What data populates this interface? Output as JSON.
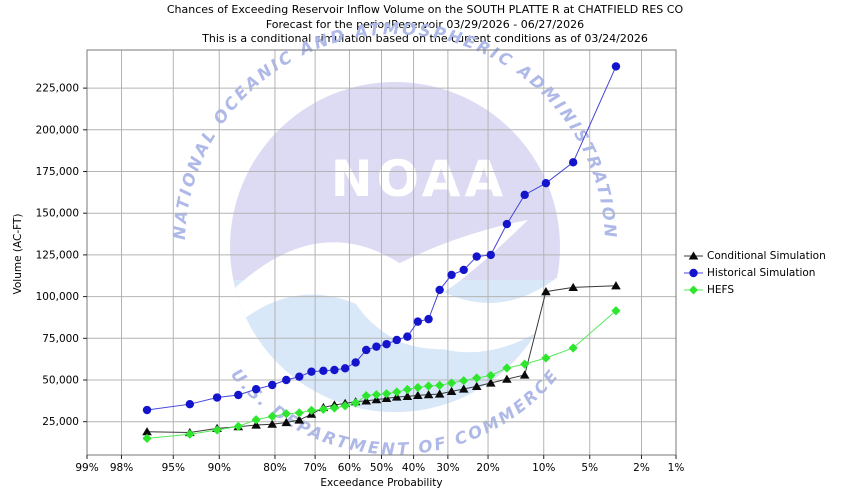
{
  "title": {
    "line1": "Chances of Exceeding Reservoir Inflow Volume on the SOUTH PLATTE R at CHATFIELD RES CO",
    "line2": "Forecast for the periodReservoir 03/29/2026 - 06/27/2026",
    "line3": "This is a conditional simulation based on the current conditions as of 03/24/2026"
  },
  "watermark": {
    "arc_text_top": "NATIONAL OCEANIC AND ATMOSPHERIC ADMINISTRATION",
    "arc_text_bottom": "U.S. DEPARTMENT OF COMMERCE",
    "emblem_text": "NOAA",
    "colors": {
      "disc": "#dcdbf3",
      "lower_sea": "#d9e8f8",
      "arc_text": "#aeb9e8",
      "emblem_text": "#ffffff"
    }
  },
  "legend": {
    "items": [
      {
        "label": "Conditional Simulation",
        "marker": "triangle",
        "color": "#0a0a0a",
        "line_color": "#3a3a3a"
      },
      {
        "label": "Historical Simulation",
        "marker": "circle",
        "color": "#1414cc",
        "line_color": "#4444d9"
      },
      {
        "label": "HEFS",
        "marker": "diamond",
        "color": "#2ee62e",
        "line_color": "#57e857"
      }
    ]
  },
  "chart_data": {
    "type": "line",
    "title": "Chances of Exceeding Reservoir Inflow Volume on the SOUTH PLATTE R at CHATFIELD RES CO",
    "xlabel": "Exceedance Probability",
    "ylabel": "Volume (AC-FT)",
    "x_scale": "normal-probability (exceedance %, 99% left to 1% right)",
    "x_range_percent": [
      99,
      1
    ],
    "grid": true,
    "legend_position": "right",
    "x_ticks": [
      {
        "label": "99%",
        "p": 99
      },
      {
        "label": "98%",
        "p": 98
      },
      {
        "label": "95%",
        "p": 95
      },
      {
        "label": "90%",
        "p": 90
      },
      {
        "label": "80%",
        "p": 80
      },
      {
        "label": "70%",
        "p": 70
      },
      {
        "label": "60%",
        "p": 60
      },
      {
        "label": "50%",
        "p": 50
      },
      {
        "label": "40%",
        "p": 40
      },
      {
        "label": "30%",
        "p": 30
      },
      {
        "label": "20%",
        "p": 20
      },
      {
        "label": "10%",
        "p": 10
      },
      {
        "label": "5%",
        "p": 5
      },
      {
        "label": "2%",
        "p": 2
      },
      {
        "label": "1%",
        "p": 1
      }
    ],
    "y_ticks": [
      {
        "label": "25,000",
        "v": 25000
      },
      {
        "label": "50,000",
        "v": 50000
      },
      {
        "label": "75,000",
        "v": 75000
      },
      {
        "label": "100,000",
        "v": 100000
      },
      {
        "label": "125,000",
        "v": 125000
      },
      {
        "label": "150,000",
        "v": 150000
      },
      {
        "label": "175,000",
        "v": 175000
      },
      {
        "label": "200,000",
        "v": 200000
      },
      {
        "label": "225,000",
        "v": 225000
      }
    ],
    "probabilities_percent": [
      96.8,
      93.5,
      90.3,
      87.1,
      83.9,
      80.6,
      77.4,
      74.2,
      71.0,
      67.7,
      64.5,
      61.3,
      58.1,
      54.8,
      51.6,
      48.4,
      45.2,
      41.9,
      38.7,
      35.5,
      32.3,
      29.0,
      25.8,
      22.6,
      19.4,
      16.1,
      12.9,
      9.7,
      6.5,
      3.2
    ],
    "series": [
      {
        "name": "Conditional Simulation",
        "marker": "triangle",
        "color": "#0a0a0a",
        "line_color": "#3a3a3a",
        "values": [
          19000,
          18500,
          21000,
          22000,
          23000,
          23500,
          24500,
          26000,
          29500,
          33500,
          35000,
          36000,
          37000,
          37500,
          38200,
          39000,
          39800,
          40200,
          40800,
          41200,
          41600,
          43200,
          44600,
          46200,
          48200,
          50500,
          53000,
          103000,
          105500,
          106500
        ]
      },
      {
        "name": "Historical Simulation",
        "marker": "circle",
        "color": "#1414cc",
        "line_color": "#4444d9",
        "values": [
          32000,
          35500,
          39500,
          41000,
          44500,
          47000,
          50000,
          52000,
          55000,
          55500,
          56000,
          57000,
          60500,
          68000,
          70000,
          71500,
          74000,
          76000,
          85000,
          86500,
          104000,
          113000,
          116000,
          124000,
          125000,
          143500,
          161000,
          168000,
          180500,
          238000
        ]
      },
      {
        "name": "HEFS",
        "marker": "diamond",
        "color": "#2ee62e",
        "line_color": "#57e857",
        "values": [
          15000,
          17500,
          20000,
          22200,
          26200,
          28200,
          29800,
          30300,
          31800,
          32400,
          33200,
          34500,
          36200,
          40600,
          41200,
          41800,
          42800,
          44300,
          45500,
          46400,
          46800,
          48200,
          49600,
          51200,
          52700,
          57200,
          59500,
          63200,
          69200,
          91500
        ]
      }
    ]
  }
}
